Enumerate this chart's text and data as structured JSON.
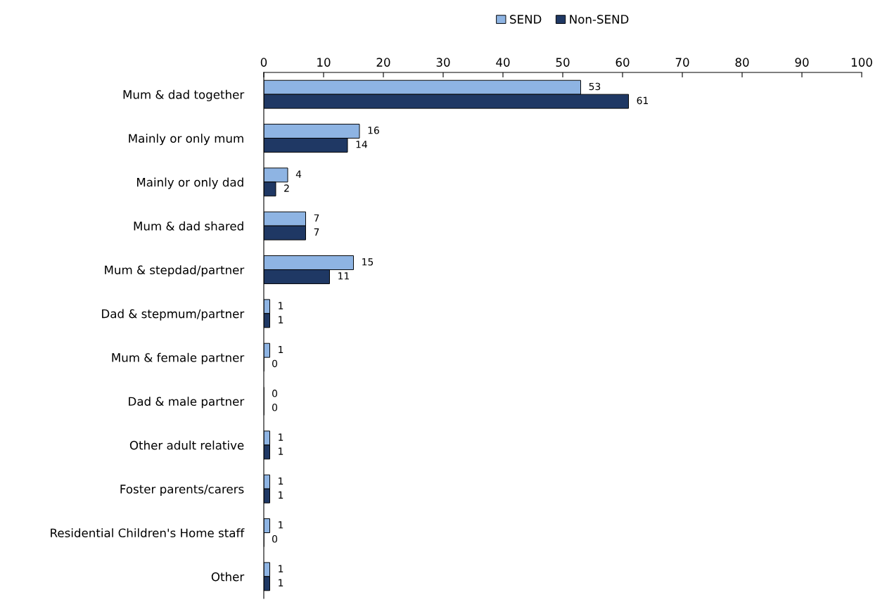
{
  "chart_data": {
    "type": "bar",
    "orientation": "horizontal",
    "categories": [
      "Mum & dad together",
      "Mainly or only mum",
      "Mainly or only dad",
      "Mum & dad shared",
      "Mum & stepdad/partner",
      "Dad & stepmum/partner",
      "Mum & female partner",
      "Dad & male partner",
      "Other adult relative",
      "Foster parents/carers",
      "Residential Children's Home staff",
      "Other"
    ],
    "series": [
      {
        "name": "SEND",
        "color": "#8eb4e3",
        "values": [
          53,
          16,
          4,
          7,
          15,
          1,
          1,
          0,
          1,
          1,
          1,
          1
        ]
      },
      {
        "name": "Non-SEND",
        "color": "#1f3864",
        "values": [
          61,
          14,
          2,
          7,
          11,
          1,
          0,
          0,
          1,
          1,
          0,
          1
        ]
      }
    ],
    "xlim": [
      0,
      100
    ],
    "xticks": [
      0,
      10,
      20,
      30,
      40,
      50,
      60,
      70,
      80,
      90,
      100
    ],
    "data_labels": true,
    "legend": "top",
    "grid": false
  }
}
